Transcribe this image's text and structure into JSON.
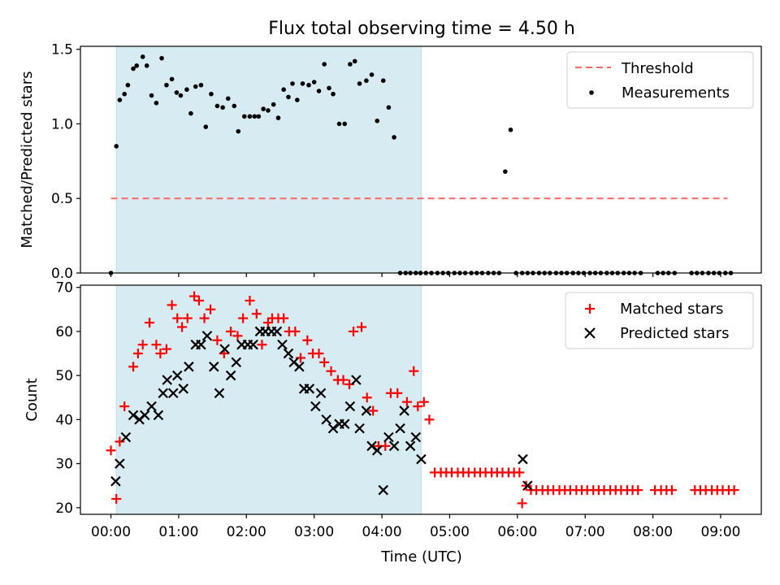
{
  "figure": {
    "title": "Flux total observing time = 4.50 h"
  },
  "chart_data": [
    {
      "type": "scatter",
      "ylabel": "Matched/Predicted stars",
      "xlim": [
        -0.45,
        9.6
      ],
      "ylim": [
        0,
        1.52
      ],
      "yticks": [
        0.0,
        0.5,
        1.0,
        1.5
      ],
      "ytick_labels": [
        "0.0",
        "0.5",
        "1.0",
        "1.5"
      ],
      "shaded_span": [
        0.08,
        4.58
      ],
      "shaded_color": "#add8e6",
      "legend_position": "top-right",
      "threshold": {
        "name": "Threshold",
        "y": 0.5,
        "x_range": [
          0.0,
          9.1
        ],
        "color": "#ff6666",
        "style": "dashed"
      },
      "series": [
        {
          "name": "Measurements",
          "marker": "dot",
          "color": "#000000",
          "x": [
            0.0,
            0.08,
            0.13,
            0.2,
            0.25,
            0.33,
            0.38,
            0.47,
            0.53,
            0.6,
            0.67,
            0.75,
            0.82,
            0.9,
            0.97,
            1.03,
            1.12,
            1.18,
            1.25,
            1.33,
            1.4,
            1.48,
            1.57,
            1.65,
            1.73,
            1.82,
            1.88,
            1.97,
            2.05,
            2.12,
            2.18,
            2.25,
            2.32,
            2.4,
            2.47,
            2.55,
            2.62,
            2.68,
            2.75,
            2.83,
            2.92,
            3.0,
            3.07,
            3.15,
            3.22,
            3.28,
            3.37,
            3.45,
            3.53,
            3.6,
            3.67,
            3.77,
            3.85,
            3.93,
            4.02,
            4.1,
            4.18,
            4.27,
            4.35,
            4.42,
            4.5,
            4.57,
            4.65,
            4.73,
            4.82,
            4.9,
            4.98,
            5.07,
            5.15,
            5.23,
            5.32,
            5.4,
            5.48,
            5.57,
            5.65,
            5.73,
            5.82,
            5.9,
            5.98,
            6.07,
            6.15,
            6.23,
            6.32,
            6.4,
            6.48,
            6.57,
            6.65,
            6.73,
            6.82,
            6.9,
            6.98,
            7.07,
            7.15,
            7.23,
            7.32,
            7.4,
            7.48,
            7.57,
            7.65,
            7.73,
            7.82,
            8.07,
            8.15,
            8.23,
            8.32,
            8.57,
            8.65,
            8.73,
            8.82,
            8.9,
            8.98,
            9.07,
            9.15
          ],
          "y": [
            0.0,
            0.85,
            1.16,
            1.2,
            1.26,
            1.37,
            1.39,
            1.45,
            1.39,
            1.19,
            1.14,
            1.44,
            1.26,
            1.3,
            1.21,
            1.19,
            1.23,
            1.07,
            1.25,
            1.26,
            0.98,
            1.2,
            1.12,
            1.11,
            1.17,
            1.12,
            0.95,
            1.05,
            1.05,
            1.05,
            1.05,
            1.1,
            1.09,
            1.13,
            1.04,
            1.23,
            1.18,
            1.27,
            1.16,
            1.27,
            1.26,
            1.28,
            1.22,
            1.4,
            1.24,
            1.2,
            1.0,
            1.0,
            1.4,
            1.42,
            1.27,
            1.29,
            1.33,
            1.02,
            1.29,
            1.11,
            0.91,
            0.0,
            0.0,
            0.0,
            0.0,
            0.0,
            0.0,
            0.0,
            0.0,
            0.0,
            0.0,
            0.0,
            0.0,
            0.0,
            0.0,
            0.0,
            0.0,
            0.0,
            0.0,
            0.0,
            0.68,
            0.96,
            0.0,
            0.0,
            0.0,
            0.0,
            0.0,
            0.0,
            0.0,
            0.0,
            0.0,
            0.0,
            0.0,
            0.0,
            0.0,
            0.0,
            0.0,
            0.0,
            0.0,
            0.0,
            0.0,
            0.0,
            0.0,
            0.0,
            0.0,
            0.0,
            0.0,
            0.0,
            0.0,
            0.0,
            0.0,
            0.0,
            0.0,
            0.0,
            0.0,
            0.0,
            0.0
          ]
        }
      ]
    },
    {
      "type": "scatter",
      "xlabel": "Time (UTC)",
      "ylabel": "Count",
      "xlim": [
        -0.45,
        9.6
      ],
      "ylim": [
        18.5,
        70.5
      ],
      "xticks": [
        0,
        1,
        2,
        3,
        4,
        5,
        6,
        7,
        8,
        9
      ],
      "xtick_labels": [
        "00:00",
        "01:00",
        "02:00",
        "03:00",
        "04:00",
        "05:00",
        "06:00",
        "07:00",
        "08:00",
        "09:00"
      ],
      "yticks": [
        20,
        30,
        40,
        50,
        60,
        70
      ],
      "ytick_labels": [
        "20",
        "30",
        "40",
        "50",
        "60",
        "70"
      ],
      "shaded_span": [
        0.08,
        4.58
      ],
      "shaded_color": "#add8e6",
      "legend_position": "top-right",
      "series": [
        {
          "name": "Matched stars",
          "marker": "plus",
          "color": "#ff0000",
          "x": [
            0.0,
            0.08,
            0.13,
            0.2,
            0.33,
            0.4,
            0.47,
            0.57,
            0.67,
            0.73,
            0.82,
            0.9,
            0.98,
            1.05,
            1.13,
            1.23,
            1.3,
            1.38,
            1.47,
            1.57,
            1.67,
            1.77,
            1.87,
            1.95,
            2.05,
            2.15,
            2.23,
            2.32,
            2.38,
            2.47,
            2.55,
            2.63,
            2.72,
            2.8,
            2.9,
            2.98,
            3.07,
            3.15,
            3.25,
            3.35,
            3.43,
            3.52,
            3.58,
            3.7,
            3.78,
            3.87,
            3.95,
            4.05,
            4.13,
            4.23,
            4.37,
            4.47,
            4.53,
            4.62,
            4.7,
            4.78,
            4.87,
            4.95,
            5.03,
            5.12,
            5.2,
            5.28,
            5.37,
            5.45,
            5.53,
            5.62,
            5.7,
            5.78,
            5.87,
            5.95,
            6.03,
            6.07,
            6.13,
            6.2,
            6.28,
            6.37,
            6.45,
            6.53,
            6.62,
            6.7,
            6.78,
            6.87,
            6.95,
            7.03,
            7.12,
            7.2,
            7.28,
            7.37,
            7.45,
            7.53,
            7.62,
            7.7,
            7.78,
            8.03,
            8.12,
            8.2,
            8.28,
            8.62,
            8.7,
            8.78,
            8.87,
            8.95,
            9.03,
            9.12,
            9.2
          ],
          "y": [
            33,
            22,
            35,
            43,
            52,
            55,
            57,
            62,
            57,
            55,
            56,
            66,
            63,
            61,
            63,
            68,
            67,
            63,
            65,
            58,
            55,
            60,
            59,
            63,
            67,
            64,
            57,
            62,
            63,
            63,
            63,
            60,
            60,
            54,
            58,
            55,
            55,
            53,
            51,
            49,
            49,
            48,
            60,
            61,
            45,
            42,
            34,
            34,
            46,
            46,
            44,
            51,
            43,
            44,
            40,
            28,
            28,
            28,
            28,
            28,
            28,
            28,
            28,
            28,
            28,
            28,
            28,
            28,
            28,
            28,
            28,
            21,
            25,
            24,
            24,
            24,
            24,
            24,
            24,
            24,
            24,
            24,
            24,
            24,
            24,
            24,
            24,
            24,
            24,
            24,
            24,
            24,
            24,
            24,
            24,
            24,
            24,
            24,
            24,
            24,
            24,
            24,
            24,
            24,
            24
          ]
        },
        {
          "name": "Predicted stars",
          "marker": "x",
          "color": "#000000",
          "x": [
            0.07,
            0.13,
            0.22,
            0.33,
            0.42,
            0.5,
            0.6,
            0.7,
            0.77,
            0.83,
            0.92,
            0.98,
            1.07,
            1.15,
            1.25,
            1.33,
            1.42,
            1.52,
            1.6,
            1.68,
            1.77,
            1.85,
            1.93,
            2.02,
            2.1,
            2.2,
            2.28,
            2.37,
            2.45,
            2.53,
            2.62,
            2.7,
            2.78,
            2.85,
            2.93,
            3.02,
            3.1,
            3.18,
            3.28,
            3.37,
            3.45,
            3.53,
            3.62,
            3.67,
            3.77,
            3.85,
            3.93,
            4.02,
            4.1,
            4.18,
            4.27,
            4.33,
            4.42,
            4.5,
            4.58,
            6.08,
            6.15
          ],
          "y": [
            26,
            30,
            36,
            41,
            40,
            41,
            43,
            41,
            46,
            49,
            46,
            50,
            47,
            52,
            57,
            57,
            59,
            52,
            46,
            56,
            50,
            53,
            57,
            57,
            57,
            60,
            60,
            60,
            60,
            57,
            55,
            53,
            52,
            47,
            47,
            43,
            46,
            40,
            38,
            39,
            39,
            43,
            49,
            38,
            42,
            34,
            33,
            24,
            36,
            34,
            38,
            42,
            34,
            36,
            31,
            31,
            25
          ]
        }
      ]
    }
  ]
}
